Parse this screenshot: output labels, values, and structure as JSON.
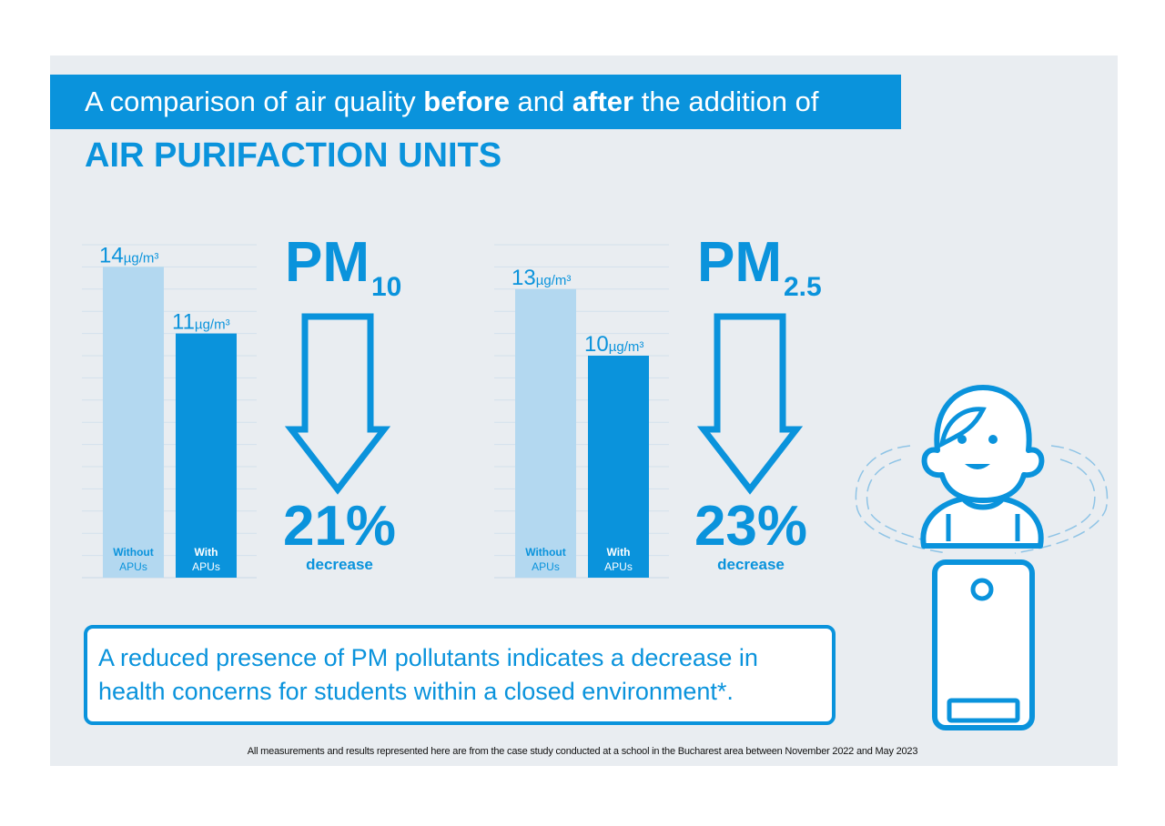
{
  "header": {
    "title_parts": [
      "A comparison of air quality ",
      "before",
      " and ",
      "after",
      " the addition of"
    ],
    "subtitle": "AIR PURIFACTION UNITS"
  },
  "colors": {
    "accent": "#0a93dc",
    "light_bar": "#b3d8f0",
    "background": "#e9edf1"
  },
  "panels": [
    {
      "pm": "PM",
      "sub": "10",
      "percent": "21%",
      "percent_label": "decrease"
    },
    {
      "pm": "PM",
      "sub": "2.5",
      "percent": "23%",
      "percent_label": "decrease"
    }
  ],
  "chart_data": [
    {
      "type": "bar",
      "categories": [
        [
          "Without",
          "APUs"
        ],
        [
          "With",
          "APUs"
        ]
      ],
      "values": [
        14,
        11
      ],
      "unit": "µg/m³",
      "ylim": [
        0,
        15
      ],
      "grid": true
    },
    {
      "type": "bar",
      "categories": [
        [
          "Without",
          "APUs"
        ],
        [
          "With",
          "APUs"
        ]
      ],
      "values": [
        13,
        10
      ],
      "unit": "µg/m³",
      "ylim": [
        0,
        15
      ],
      "grid": true
    }
  ],
  "note": {
    "line1": "A reduced presence of PM pollutants indicates a decrease in",
    "line2": "health concerns for students within a closed environment*."
  },
  "footnote": "All measurements and results represented here are from the case study conducted at a school in the Bucharest area between November 2022 and May 2023"
}
